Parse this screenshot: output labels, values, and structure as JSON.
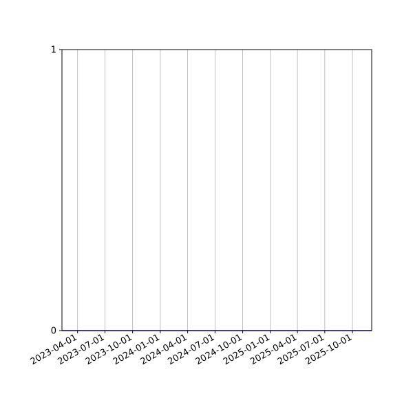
{
  "chart_data": {
    "type": "line",
    "title": "",
    "xlabel": "",
    "ylabel": "",
    "xlim": [
      "2023-02-08",
      "2025-12-04"
    ],
    "ylim": [
      0,
      1
    ],
    "grid": {
      "x": true,
      "y": false
    },
    "x_ticks": [
      "2023-04-01",
      "2023-07-01",
      "2023-10-01",
      "2024-01-01",
      "2024-04-01",
      "2024-07-01",
      "2024-10-01",
      "2025-01-01",
      "2025-04-01",
      "2025-07-01",
      "2025-10-01"
    ],
    "y_ticks": [
      "0",
      "1"
    ],
    "series": [
      {
        "x": [
          "2023-02-08",
          "2025-12-04"
        ],
        "y": [
          0,
          0
        ],
        "color": "#0000ff"
      }
    ],
    "colors": {
      "grid": "#b0b0b0",
      "axis": "#000000"
    }
  }
}
